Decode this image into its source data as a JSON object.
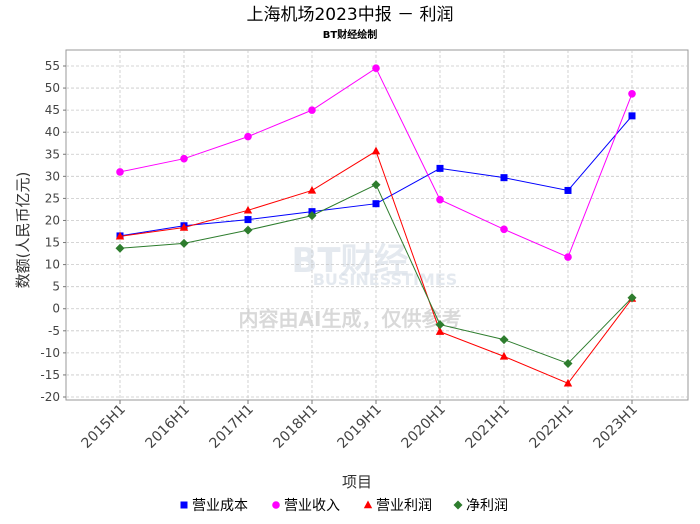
{
  "chart_data": {
    "type": "line",
    "title": "上海机场2023中报 － 利润",
    "subtitle": "BT财经绘制",
    "xlabel": "项目",
    "ylabel": "数额(人民币亿元)",
    "categories": [
      "2015H1",
      "2016H1",
      "2017H1",
      "2018H1",
      "2019H1",
      "2020H1",
      "2021H1",
      "2022H1",
      "2023H1"
    ],
    "ylim": [
      -20,
      55
    ],
    "yticks": [
      -20,
      -15,
      -10,
      -5,
      0,
      5,
      10,
      15,
      20,
      25,
      30,
      35,
      40,
      45,
      50,
      55
    ],
    "grid": true,
    "legend_position": "bottom",
    "series": [
      {
        "name": "营业成本",
        "color": "#0000ff",
        "marker": "square",
        "values": [
          16.5,
          18.8,
          20.2,
          22.0,
          23.8,
          31.8,
          29.7,
          26.8,
          43.7
        ]
      },
      {
        "name": "营业收入",
        "color": "#ff00ff",
        "marker": "circle",
        "values": [
          31.0,
          34.0,
          39.0,
          45.0,
          54.5,
          24.7,
          18.0,
          11.7,
          48.7
        ]
      },
      {
        "name": "营业利润",
        "color": "#ff0000",
        "marker": "triangle",
        "values": [
          16.4,
          18.4,
          22.3,
          26.8,
          35.7,
          -5.2,
          -10.8,
          -16.9,
          2.3
        ]
      },
      {
        "name": "净利润",
        "color": "#2e7d2e",
        "marker": "diamond",
        "values": [
          13.7,
          14.8,
          17.8,
          21.1,
          28.1,
          -3.6,
          -7.0,
          -12.4,
          2.5
        ]
      }
    ]
  },
  "watermark": {
    "logo": "BT财经",
    "logo_sub": "BUSINESSTIMES",
    "notice": "内容由AI生成，仅供参考"
  }
}
